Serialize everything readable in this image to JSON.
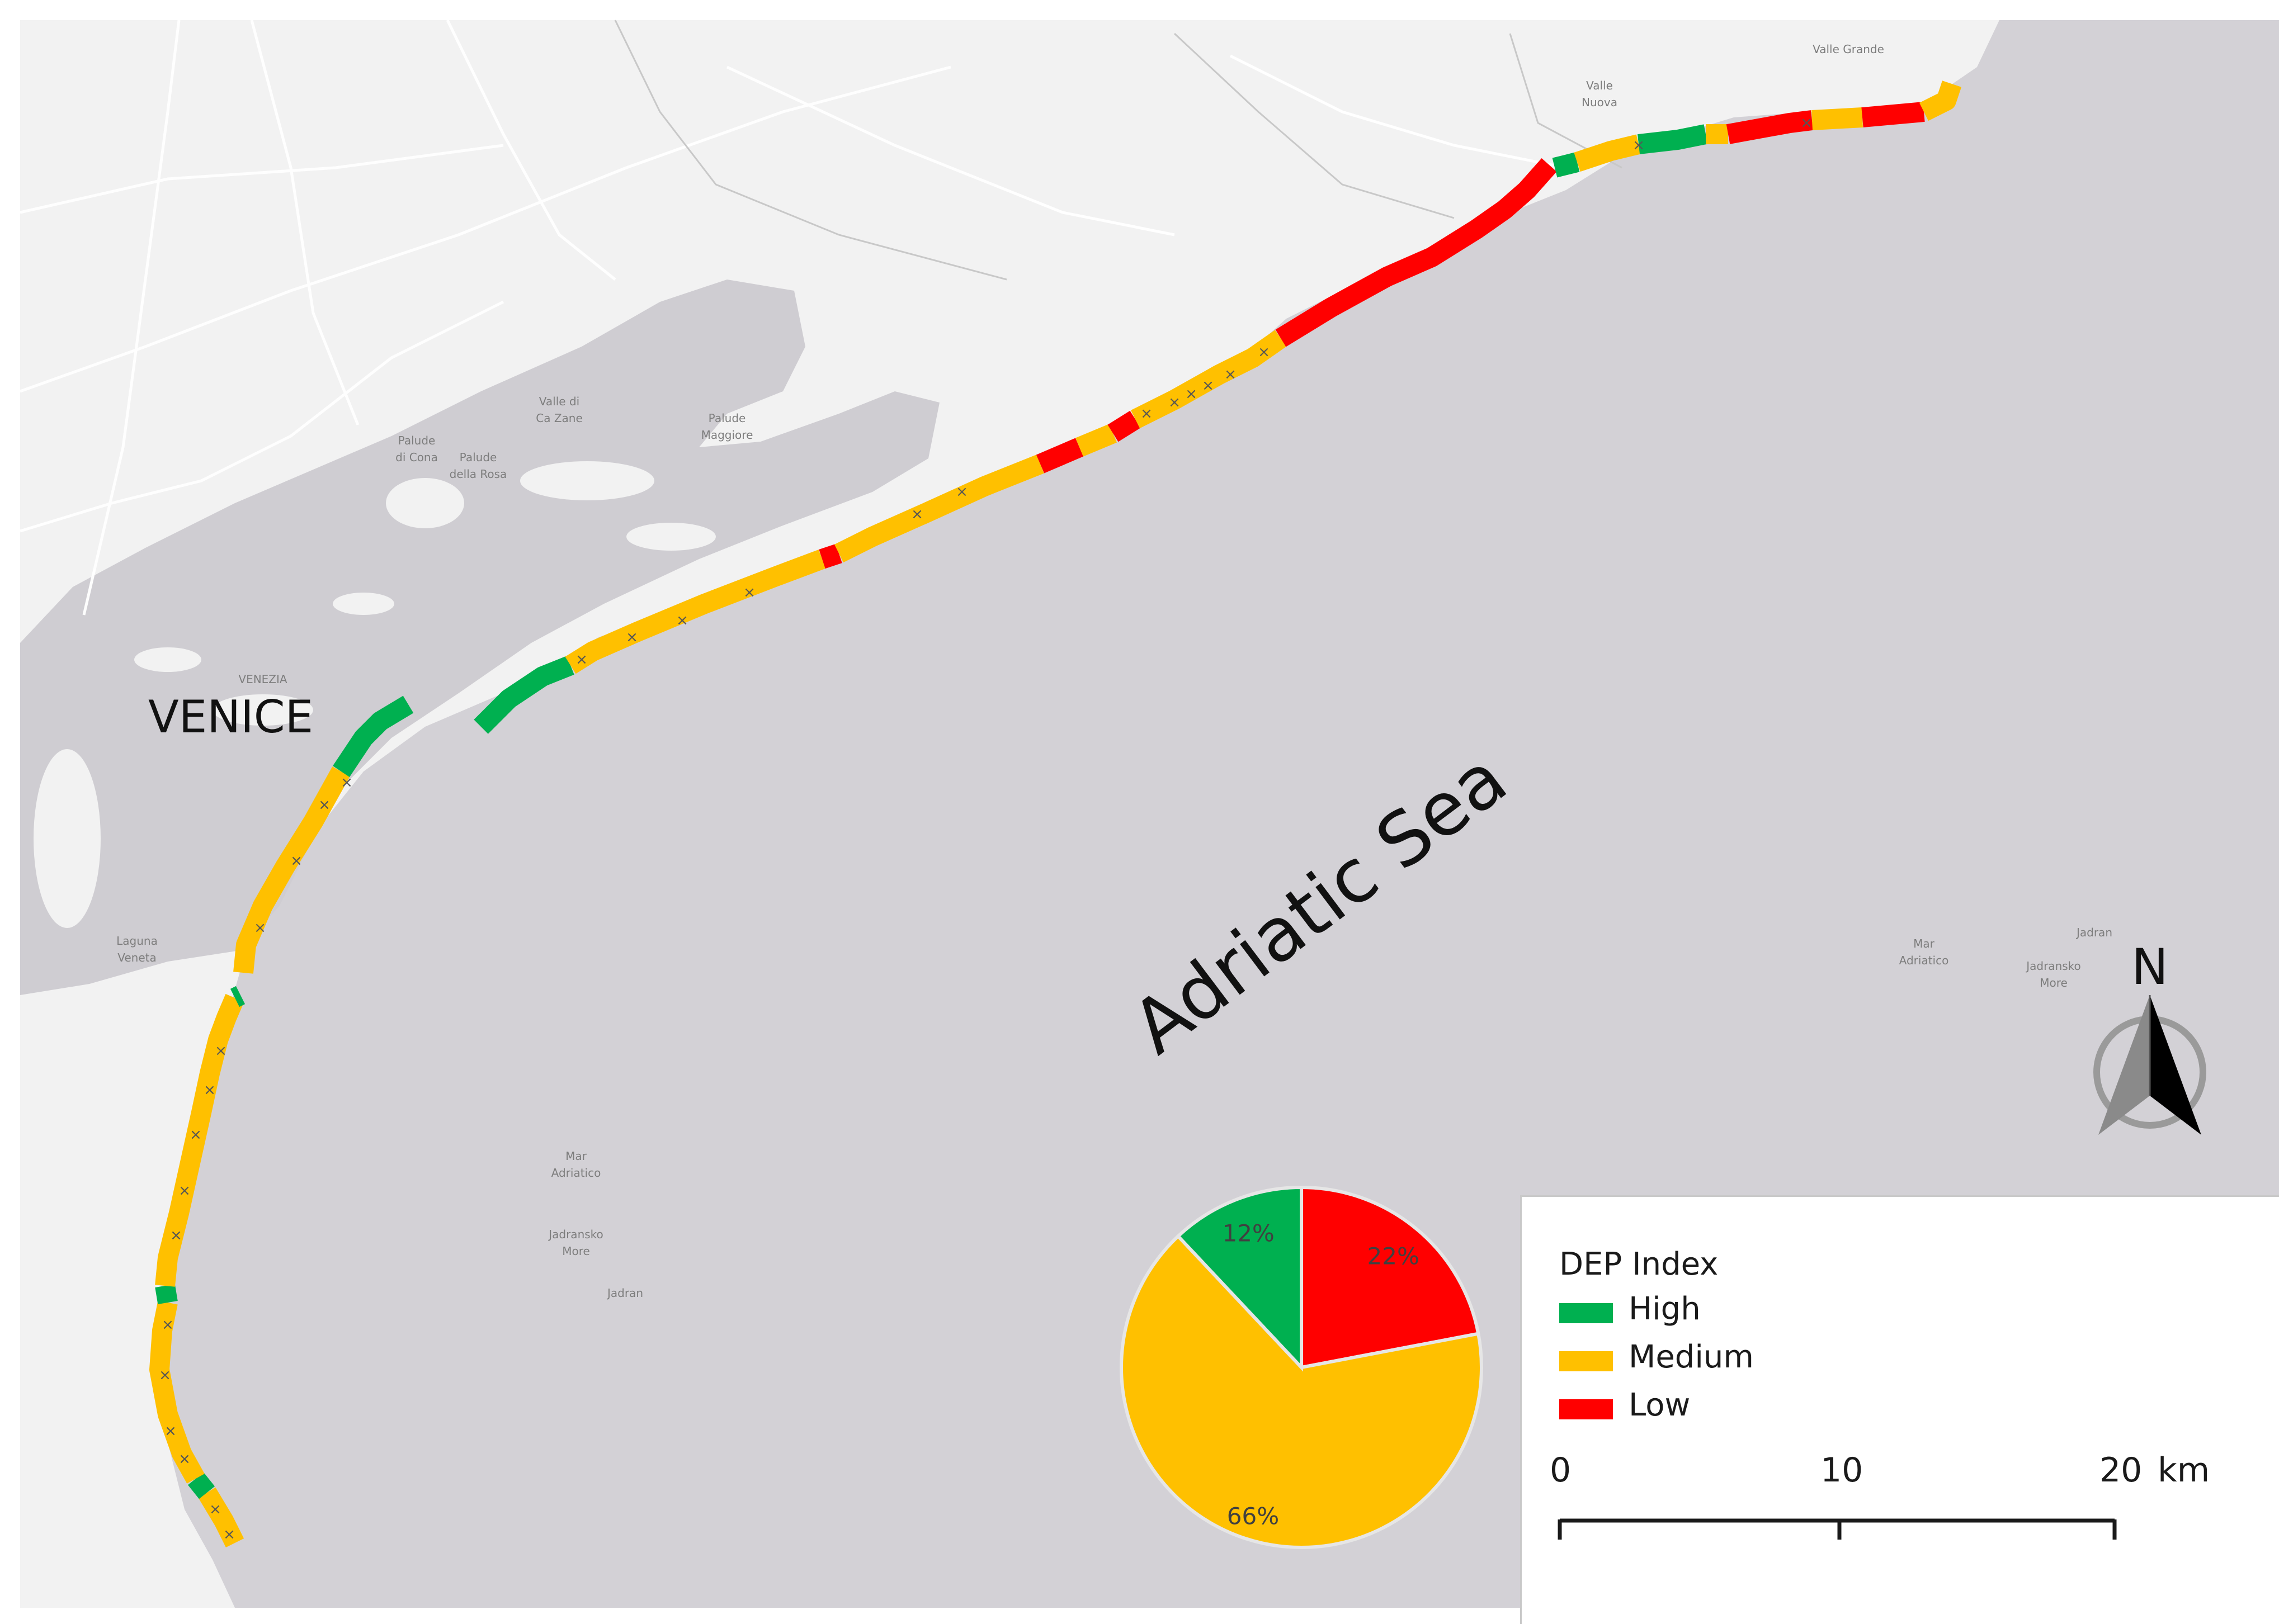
{
  "map": {
    "place_label": "VENICE",
    "sea_label": "Adriatic Sea",
    "minor_labels": [
      {
        "lines": [
          "Mar",
          "Adriatico"
        ]
      },
      {
        "lines": [
          "Jadransko",
          "More"
        ]
      },
      {
        "lines": [
          "Jadran"
        ]
      },
      {
        "lines": [
          "Mar",
          "Adriatico"
        ]
      },
      {
        "lines": [
          "Jadransko",
          "More"
        ]
      },
      {
        "lines": [
          "Jadran"
        ]
      },
      {
        "lines": [
          "VENEZIA"
        ]
      },
      {
        "lines": [
          "Laguna",
          "Veneta"
        ]
      },
      {
        "lines": [
          "Valle di",
          "Ca Zane"
        ]
      },
      {
        "lines": [
          "Palude",
          "Maggiore"
        ]
      },
      {
        "lines": [
          "Palude",
          "di Cona"
        ]
      },
      {
        "lines": [
          "Palude",
          "della Rosa"
        ]
      },
      {
        "lines": [
          "Valle",
          "Nuova"
        ]
      },
      {
        "lines": [
          "Valle Grande"
        ]
      }
    ],
    "colors": {
      "land": "#f2f2f2",
      "sea": "#d3d1d6",
      "lagoon": "#cfcdd2",
      "roads": "#ffffff"
    }
  },
  "coast_segments": [
    {
      "cls": "medium"
    },
    {
      "cls": "high"
    },
    {
      "cls": "medium"
    },
    {
      "cls": "high"
    },
    {
      "cls": "medium"
    },
    {
      "cls": "high"
    },
    {
      "cls": "medium"
    },
    {
      "cls": "high"
    },
    {
      "cls": "high"
    },
    {
      "cls": "medium"
    },
    {
      "cls": "low"
    },
    {
      "cls": "medium"
    },
    {
      "cls": "low"
    },
    {
      "cls": "medium"
    },
    {
      "cls": "low"
    },
    {
      "cls": "medium"
    },
    {
      "cls": "low"
    },
    {
      "cls": "high"
    },
    {
      "cls": "medium"
    },
    {
      "cls": "high"
    },
    {
      "cls": "medium"
    },
    {
      "cls": "low"
    },
    {
      "cls": "medium"
    },
    {
      "cls": "low"
    },
    {
      "cls": "medium"
    }
  ],
  "pie": {
    "slices": [
      {
        "class": "Low",
        "percent": 22,
        "label": "22%",
        "color": "#ff0000"
      },
      {
        "class": "Medium",
        "percent": 66,
        "label": "66%",
        "color": "#ffc000"
      },
      {
        "class": "High",
        "percent": 12,
        "label": "12%",
        "color": "#00b050"
      }
    ]
  },
  "legend": {
    "title": "DEP Index",
    "items": [
      {
        "label": "High",
        "color": "#00b050"
      },
      {
        "label": "Medium",
        "color": "#ffc000"
      },
      {
        "label": "Low",
        "color": "#ff0000"
      }
    ]
  },
  "scale_bar": {
    "ticks": [
      "0",
      "10",
      "20"
    ],
    "unit": "km"
  },
  "north_arrow": {
    "label": "N",
    "icon": "north-arrow-icon"
  }
}
